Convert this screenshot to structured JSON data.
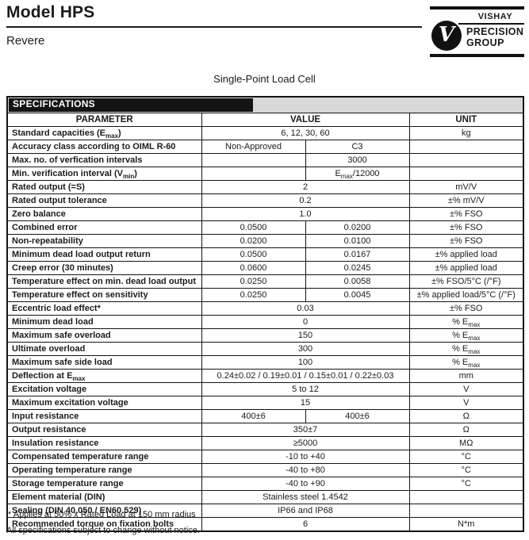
{
  "header": {
    "model": "Model HPS",
    "brand": "Revere",
    "subtitle": "Single-Point Load Cell",
    "logo": {
      "line1": "VISHAY",
      "line2": "PRECISION",
      "line3": "GROUP",
      "monogram": "V"
    }
  },
  "colors": {
    "text": "#1b1b1b",
    "table_border": "#141414",
    "spec_bar_bg": "#d8d8d8",
    "spec_label_bg": "#141414",
    "spec_label_text": "#ffffff"
  },
  "table": {
    "title": "SPECIFICATIONS",
    "columns": [
      "PARAMETER",
      "VALUE",
      "UNIT"
    ],
    "rows": [
      {
        "param": "Standard capacities (E_{max})",
        "values": [
          "6, 12, 30, 60"
        ],
        "unit": "kg"
      },
      {
        "param": "Accuracy class according to OIML R-60",
        "values": [
          "Non-Approved",
          "C3"
        ],
        "unit": ""
      },
      {
        "param": "Max. no. of verfication intervals",
        "values": [
          "",
          "3000"
        ],
        "unit": ""
      },
      {
        "param": "Min. verification interval (V_{min})",
        "values": [
          "",
          "E_{max}/12000"
        ],
        "unit": ""
      },
      {
        "param": "Rated output (=S)",
        "values": [
          "2"
        ],
        "unit": "mV/V"
      },
      {
        "param": "Rated output tolerance",
        "values": [
          "0.2"
        ],
        "unit": "±% mV/V"
      },
      {
        "param": "Zero balance",
        "values": [
          "1.0"
        ],
        "unit": "±% FSO"
      },
      {
        "param": "Combined error",
        "values": [
          "0.0500",
          "0.0200"
        ],
        "unit": "±% FSO"
      },
      {
        "param": "Non-repeatability",
        "values": [
          "0.0200",
          "0.0100"
        ],
        "unit": "±% FSO"
      },
      {
        "param": "Minimum dead load output return",
        "values": [
          "0.0500",
          "0.0167"
        ],
        "unit": "±% applied load"
      },
      {
        "param": "Creep error (30 minutes)",
        "values": [
          "0.0600",
          "0.0245"
        ],
        "unit": "±% applied load"
      },
      {
        "param": "Temperature effect on min. dead load output",
        "values": [
          "0.0250",
          "0.0058"
        ],
        "unit": "±% FSO/5°C (/°F)"
      },
      {
        "param": "Temperature effect on sensitivity",
        "values": [
          "0.0250",
          "0.0045"
        ],
        "unit": "±% applied load/5°C (/°F)"
      },
      {
        "param": "Eccentric load effect*",
        "values": [
          "0.03"
        ],
        "unit": "±% FSO"
      },
      {
        "param": "Minimum dead load",
        "values": [
          "0"
        ],
        "unit": "% E_{max}"
      },
      {
        "param": "Maximum safe overload",
        "values": [
          "150"
        ],
        "unit": "% E_{max}"
      },
      {
        "param": "Ultimate overload",
        "values": [
          "300"
        ],
        "unit": "% E_{max}"
      },
      {
        "param": "Maximum safe side load",
        "values": [
          "100"
        ],
        "unit": "% E_{max}"
      },
      {
        "param": "Deflection at E_{max}",
        "values": [
          "0.24±0.02 / 0.19±0.01 / 0.15±0.01 / 0.22±0.03"
        ],
        "unit": "mm"
      },
      {
        "param": "Excitation voltage",
        "values": [
          "5 to 12"
        ],
        "unit": "V"
      },
      {
        "param": "Maximum excitation voltage",
        "values": [
          "15"
        ],
        "unit": "V"
      },
      {
        "param": "Input resistance",
        "values": [
          "400±6",
          "400±6"
        ],
        "unit": "Ω"
      },
      {
        "param": "Output resistance",
        "values": [
          "350±7"
        ],
        "unit": "Ω"
      },
      {
        "param": "Insulation resistance",
        "values": [
          "≥5000"
        ],
        "unit": "MΩ"
      },
      {
        "param": "Compensated temperature range",
        "values": [
          "-10 to +40"
        ],
        "unit": "°C"
      },
      {
        "param": "Operating temperature range",
        "values": [
          "-40 to +80"
        ],
        "unit": "°C"
      },
      {
        "param": "Storage temperature range",
        "values": [
          "-40 to +90"
        ],
        "unit": "°C"
      },
      {
        "param": "Element material (DIN)",
        "values": [
          "Stainless steel 1.4542"
        ],
        "unit": ""
      },
      {
        "param": "Sealing (DIN 40.050 / EN60.529)",
        "values": [
          "IP66 and IP68"
        ],
        "unit": ""
      },
      {
        "param": "Recommended torque on fixation bolts",
        "values": [
          "6"
        ],
        "unit": "N*m"
      }
    ]
  },
  "footnotes": [
    "* Applies at 50% x Rated Load at 150 mm radius",
    "All specifications subject to change without notice."
  ]
}
